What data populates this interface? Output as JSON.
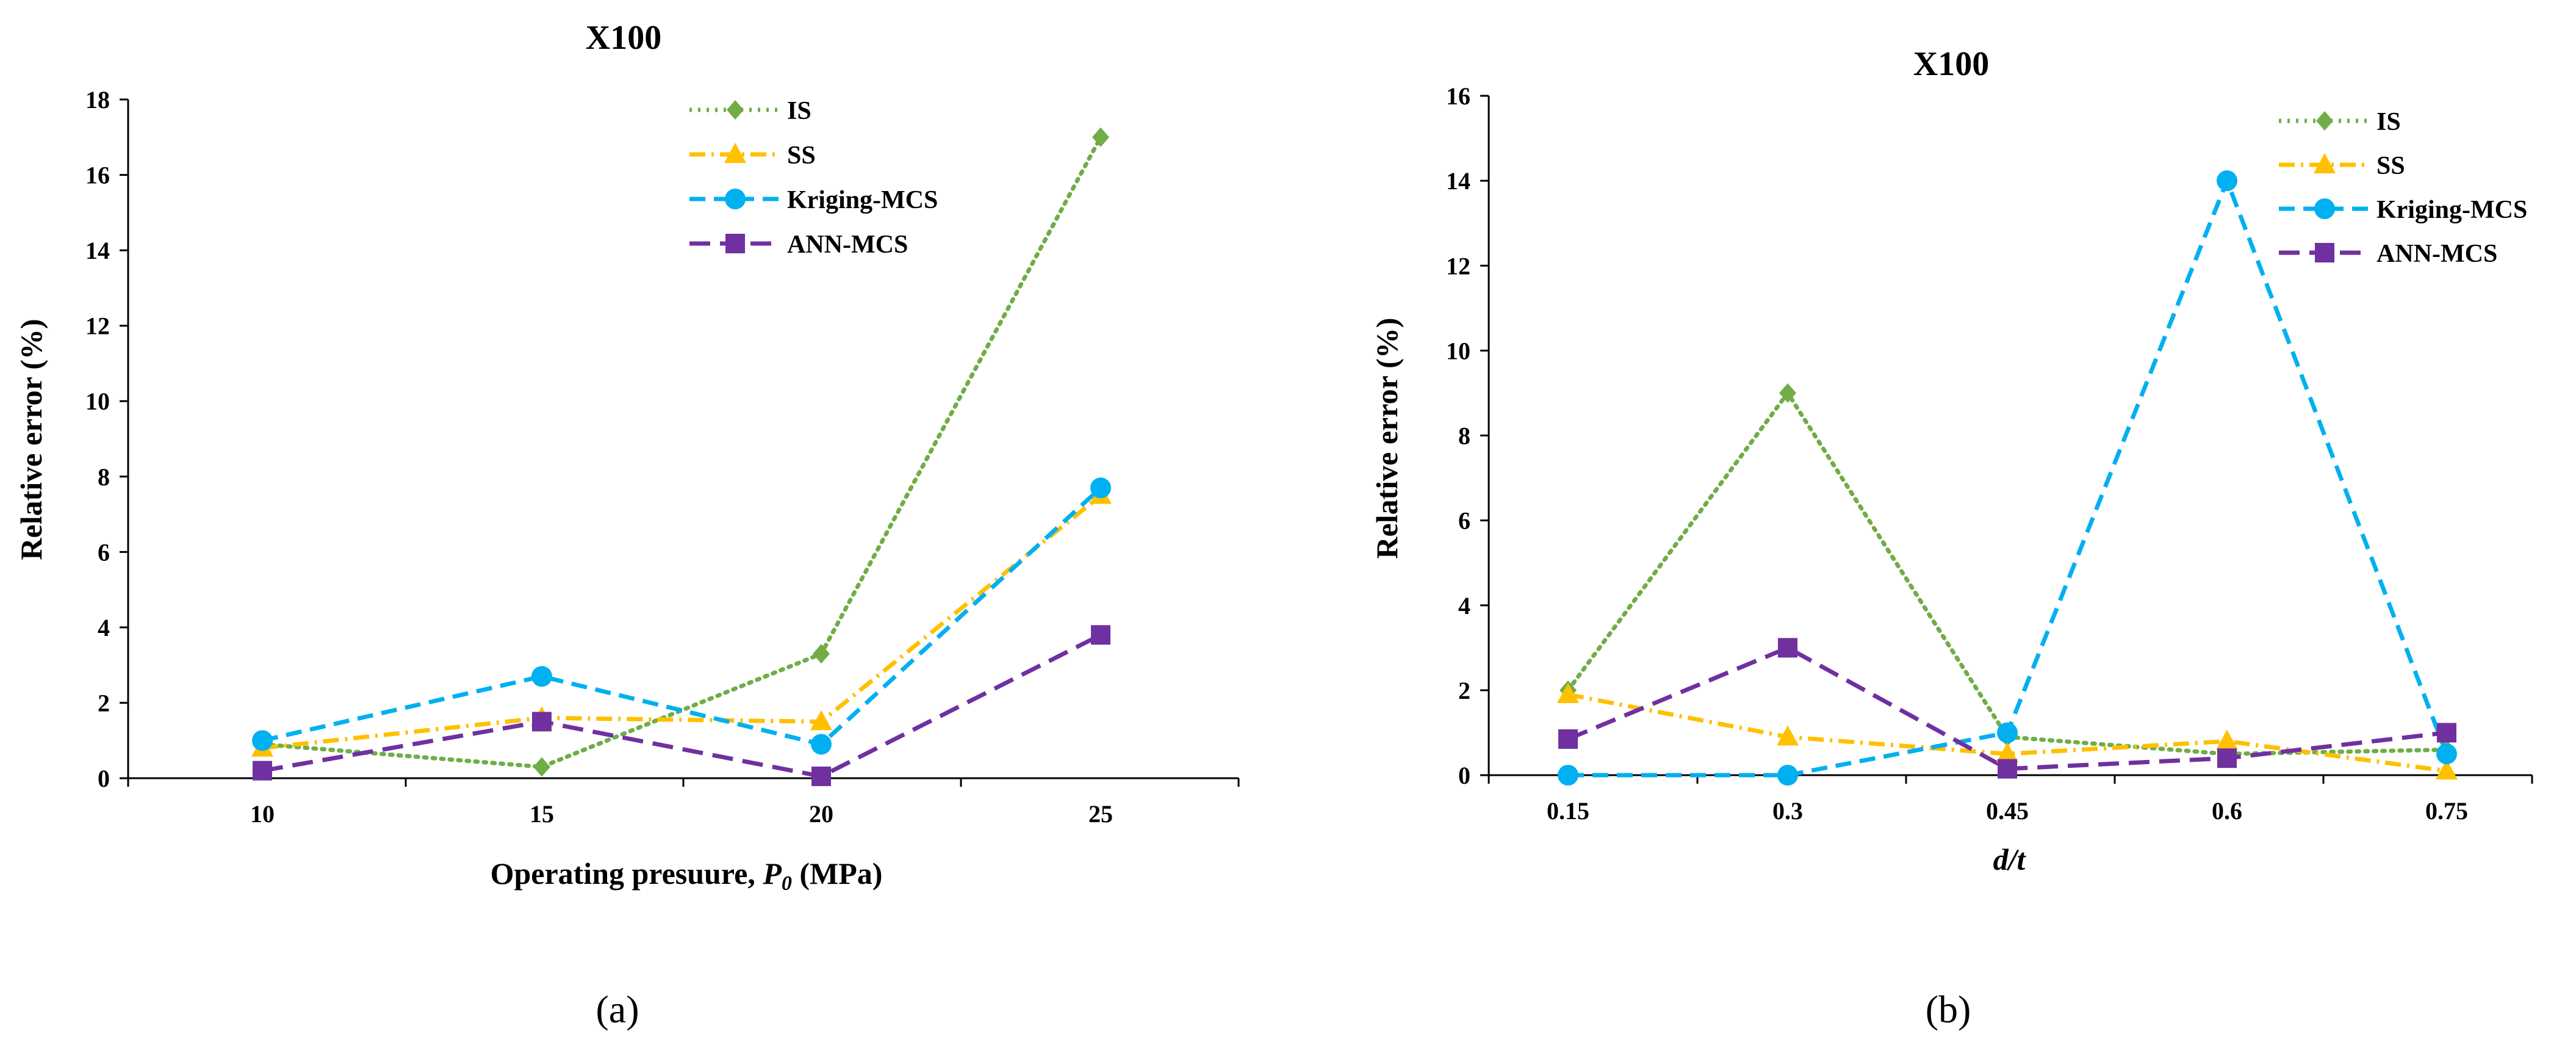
{
  "colors": {
    "IS": "#70AD47",
    "SS": "#FFC000",
    "Kriging-MCS": "#00B0F0",
    "ANN-MCS": "#7030A0"
  },
  "chart_data": [
    {
      "type": "line",
      "title": "X100",
      "xlabel_prefix": "Operating presuure, ",
      "xlabel_symbol": "P",
      "xlabel_subscript": "0",
      "xlabel_suffix": " (MPa)",
      "ylabel": "Relative error (%)",
      "categories": [
        "10",
        "15",
        "20",
        "25"
      ],
      "ylim": [
        0,
        18
      ],
      "yticks": [
        0,
        2,
        4,
        6,
        8,
        10,
        12,
        14,
        16,
        18
      ],
      "legend_position": "top-right",
      "panel_label": "(a)",
      "series": [
        {
          "name": "IS",
          "marker": "diamond",
          "dash": "dot",
          "values": [
            0.9,
            0.3,
            3.3,
            17.0
          ]
        },
        {
          "name": "SS",
          "marker": "triangle",
          "dash": "dashdot",
          "values": [
            0.8,
            1.6,
            1.5,
            7.5
          ]
        },
        {
          "name": "Kriging-MCS",
          "marker": "circle",
          "dash": "dash",
          "values": [
            1.0,
            2.7,
            0.9,
            7.7
          ]
        },
        {
          "name": "ANN-MCS",
          "marker": "square",
          "dash": "longdash",
          "values": [
            0.2,
            1.5,
            0.05,
            3.8
          ]
        }
      ]
    },
    {
      "type": "line",
      "title": "X100",
      "xlabel": "d/t",
      "ylabel": "Relative error (%)",
      "categories": [
        "0.15",
        "0.3",
        "0.45",
        "0.6",
        "0.75"
      ],
      "ylim": [
        0,
        16
      ],
      "yticks": [
        0,
        2,
        4,
        6,
        8,
        10,
        12,
        14,
        16
      ],
      "legend_position": "top-right",
      "panel_label": "(b)",
      "series": [
        {
          "name": "IS",
          "marker": "diamond",
          "dash": "dot",
          "values": [
            2.0,
            9.0,
            0.9,
            0.5,
            0.6
          ]
        },
        {
          "name": "SS",
          "marker": "triangle",
          "dash": "dashdot",
          "values": [
            1.9,
            0.9,
            0.5,
            0.8,
            0.1
          ]
        },
        {
          "name": "Kriging-MCS",
          "marker": "circle",
          "dash": "dash",
          "values": [
            0.0,
            0.0,
            1.0,
            14.0,
            0.5
          ]
        },
        {
          "name": "ANN-MCS",
          "marker": "square",
          "dash": "longdash",
          "values": [
            0.85,
            3.0,
            0.15,
            0.4,
            1.0
          ]
        }
      ]
    }
  ]
}
